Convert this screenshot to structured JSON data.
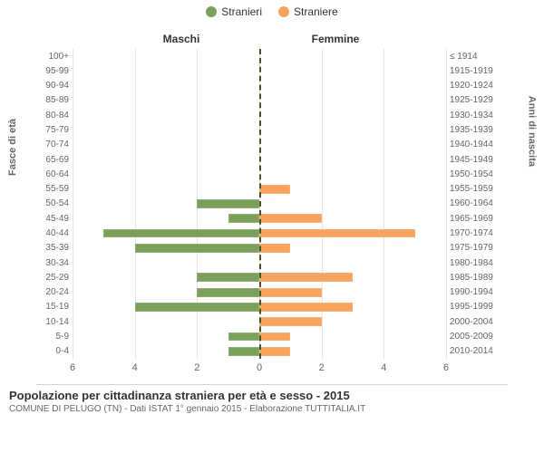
{
  "legend": {
    "male": {
      "label": "Stranieri",
      "color": "#7ba05b"
    },
    "female": {
      "label": "Straniere",
      "color": "#f7a35c"
    }
  },
  "section_titles": {
    "left": "Maschi",
    "right": "Femmine"
  },
  "axis_titles": {
    "left": "Fasce di età",
    "right": "Anni di nascita"
  },
  "age_labels": [
    "100+",
    "95-99",
    "90-94",
    "85-89",
    "80-84",
    "75-79",
    "70-74",
    "65-69",
    "60-64",
    "55-59",
    "50-54",
    "45-49",
    "40-44",
    "35-39",
    "30-34",
    "25-29",
    "20-24",
    "15-19",
    "10-14",
    "5-9",
    "0-4"
  ],
  "year_labels": [
    "≤ 1914",
    "1915-1919",
    "1920-1924",
    "1925-1929",
    "1930-1934",
    "1935-1939",
    "1940-1944",
    "1945-1949",
    "1950-1954",
    "1955-1959",
    "1960-1964",
    "1965-1969",
    "1970-1974",
    "1975-1979",
    "1980-1984",
    "1985-1989",
    "1990-1994",
    "1995-1999",
    "2000-2004",
    "2005-2009",
    "2010-2014"
  ],
  "chart": {
    "type": "population-pyramid",
    "x_max": 6,
    "x_ticks_left": [
      6,
      4,
      2,
      0
    ],
    "x_ticks_right": [
      2,
      4,
      6
    ],
    "grid_color": "#e6e6e6",
    "centerline_color": "#556633",
    "background_color": "#ffffff",
    "bar_colors": {
      "male": "#7ba05b",
      "female": "#f7a35c"
    },
    "rows": [
      {
        "male": 0,
        "female": 0
      },
      {
        "male": 0,
        "female": 0
      },
      {
        "male": 0,
        "female": 0
      },
      {
        "male": 0,
        "female": 0
      },
      {
        "male": 0,
        "female": 0
      },
      {
        "male": 0,
        "female": 0
      },
      {
        "male": 0,
        "female": 0
      },
      {
        "male": 0,
        "female": 0
      },
      {
        "male": 0,
        "female": 0
      },
      {
        "male": 0,
        "female": 1
      },
      {
        "male": 2,
        "female": 0
      },
      {
        "male": 1,
        "female": 2
      },
      {
        "male": 5,
        "female": 5
      },
      {
        "male": 4,
        "female": 1
      },
      {
        "male": 0,
        "female": 0
      },
      {
        "male": 2,
        "female": 3
      },
      {
        "male": 2,
        "female": 2
      },
      {
        "male": 4,
        "female": 3
      },
      {
        "male": 0,
        "female": 2
      },
      {
        "male": 1,
        "female": 1
      },
      {
        "male": 1,
        "female": 1
      }
    ]
  },
  "footer": {
    "title": "Popolazione per cittadinanza straniera per età e sesso - 2015",
    "subtitle": "COMUNE DI PELUGO (TN) - Dati ISTAT 1° gennaio 2015 - Elaborazione TUTTITALIA.IT"
  }
}
